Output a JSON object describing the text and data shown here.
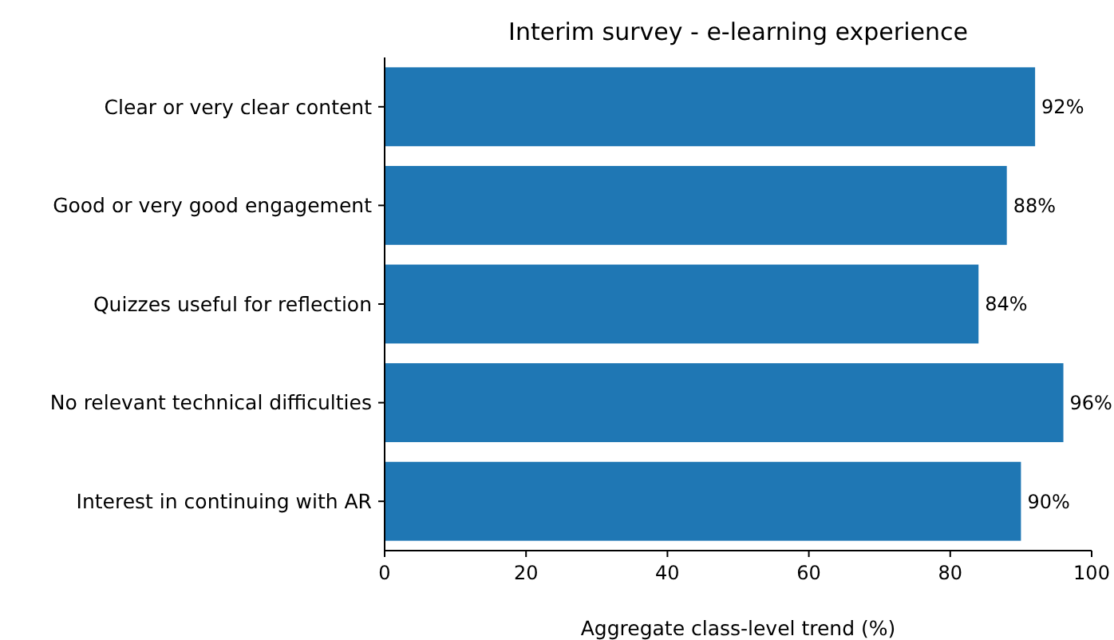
{
  "chart_data": {
    "type": "bar",
    "orientation": "horizontal",
    "title": "Interim survey - e-learning experience",
    "xlabel": "Aggregate class-level trend (%)",
    "categories": [
      "Clear or very clear content",
      "Good or very good engagement",
      "Quizzes useful for reflection",
      "No relevant technical difficulties",
      "Interest in continuing with AR"
    ],
    "values": [
      92,
      88,
      84,
      96,
      90
    ],
    "value_labels": [
      "92%",
      "88%",
      "84%",
      "96%",
      "90%"
    ],
    "color": "#1f77b4",
    "xlim": [
      0,
      100
    ],
    "xticks": [
      0,
      20,
      40,
      60,
      80,
      100
    ]
  }
}
